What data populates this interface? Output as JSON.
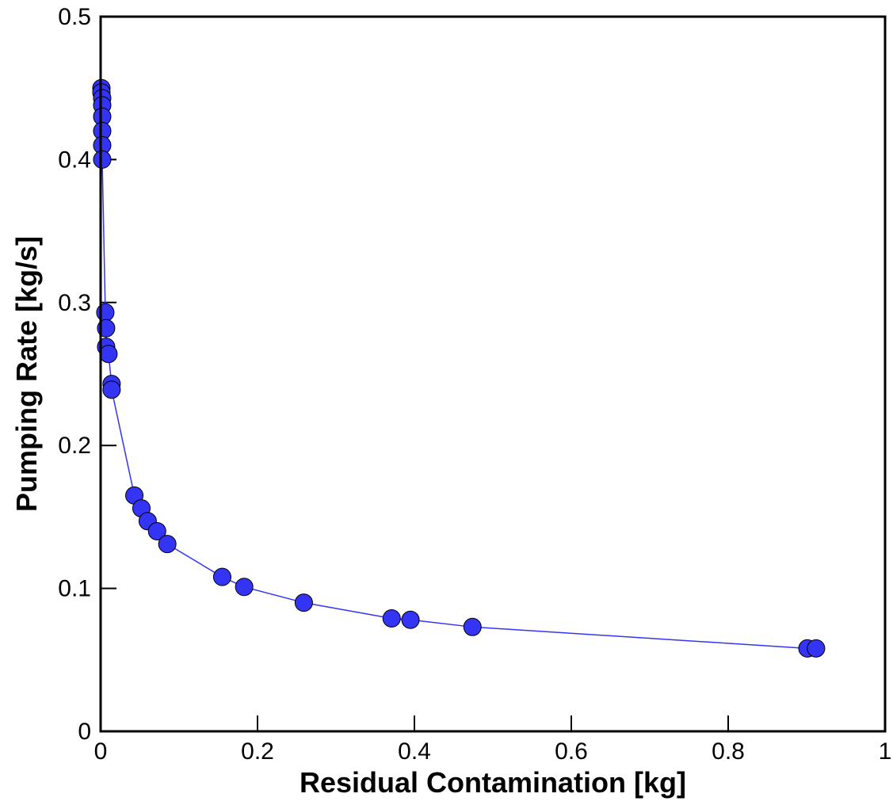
{
  "chart_data": {
    "type": "scatter",
    "xlabel": "Residual Contamination [kg]",
    "ylabel": "Pumping Rate [kg/s]",
    "xlim": [
      0,
      1
    ],
    "ylim": [
      0,
      0.5
    ],
    "xticks": [
      0,
      0.2,
      0.4,
      0.6,
      0.8,
      1
    ],
    "yticks": [
      0,
      0.1,
      0.2,
      0.3,
      0.4,
      0.5
    ],
    "connect": true,
    "series": [
      {
        "color": "#3434f4",
        "x": [
          0.001,
          0.001,
          0.002,
          0.002,
          0.002,
          0.002,
          0.002,
          0.002,
          0.006,
          0.007,
          0.007,
          0.01,
          0.014,
          0.014,
          0.043,
          0.052,
          0.06,
          0.072,
          0.085,
          0.155,
          0.183,
          0.259,
          0.371,
          0.395,
          0.474,
          0.901,
          0.912
        ],
        "values": [
          0.45,
          0.447,
          0.443,
          0.438,
          0.43,
          0.42,
          0.41,
          0.4,
          0.293,
          0.282,
          0.269,
          0.264,
          0.243,
          0.239,
          0.165,
          0.156,
          0.147,
          0.14,
          0.131,
          0.108,
          0.101,
          0.09,
          0.079,
          0.078,
          0.073,
          0.058,
          0.058
        ]
      }
    ]
  }
}
